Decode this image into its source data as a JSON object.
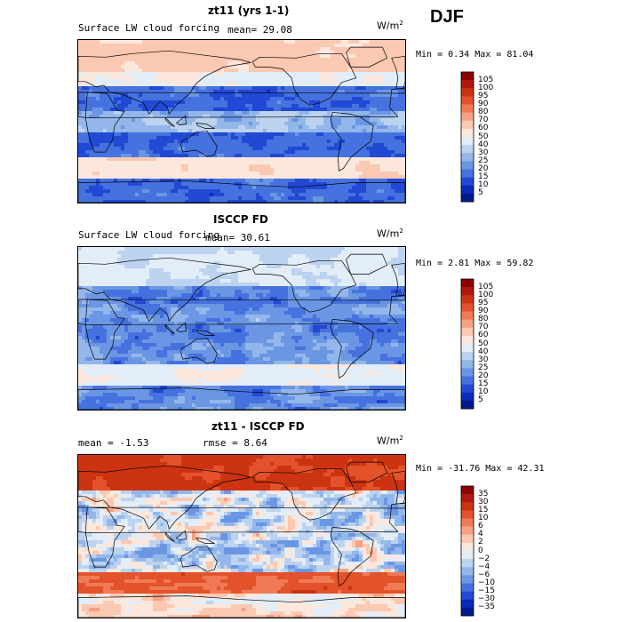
{
  "season": "DJF",
  "panels": [
    {
      "title": "zt11 (yrs 1-1)",
      "left_text": "Surface LW cloud forcing",
      "mean_text": "mean=  29.08",
      "units": "W/m",
      "units_exp": "2",
      "minmax": "Min =   0.34 Max =  81.04",
      "colorbar": {
        "labels": [
          "105",
          "100",
          "95",
          "90",
          "80",
          "70",
          "60",
          "50",
          "40",
          "30",
          "25",
          "20",
          "15",
          "10",
          "5"
        ],
        "colors": [
          "#8b0000",
          "#b2160e",
          "#cc3310",
          "#e3522a",
          "#ef7a55",
          "#f6a283",
          "#fbc8b2",
          "#fbe7dc",
          "#e3edf8",
          "#bcd3f0",
          "#93b7ea",
          "#6b96e4",
          "#4572de",
          "#2149d4",
          "#0a2ab8",
          "#001a8c"
        ]
      },
      "field": "model"
    },
    {
      "title": "ISCCP FD",
      "left_text": "Surface LW cloud forcing",
      "mean_text": "mean=  30.61",
      "units": "W/m",
      "units_exp": "2",
      "minmax": "Min =   2.81 Max =  59.82",
      "colorbar": {
        "labels": [
          "105",
          "100",
          "95",
          "90",
          "80",
          "70",
          "60",
          "50",
          "40",
          "30",
          "25",
          "20",
          "15",
          "10",
          "5"
        ],
        "colors": [
          "#8b0000",
          "#b2160e",
          "#cc3310",
          "#e3522a",
          "#ef7a55",
          "#f6a283",
          "#fbc8b2",
          "#fbe7dc",
          "#e3edf8",
          "#bcd3f0",
          "#93b7ea",
          "#6b96e4",
          "#4572de",
          "#2149d4",
          "#0a2ab8",
          "#001a8c"
        ]
      },
      "field": "obs"
    },
    {
      "title": "zt11 - ISCCP FD",
      "left_text": "mean =   -1.53",
      "mean_text": "rmse =   8.64",
      "units": "W/m",
      "units_exp": "2",
      "minmax": "Min = -31.76 Max =  42.31",
      "colorbar": {
        "labels": [
          "35",
          "30",
          "15",
          "10",
          "6",
          "4",
          "2",
          "0",
          "−2",
          "−4",
          "−6",
          "−10",
          "−15",
          "−30",
          "−35"
        ],
        "colors": [
          "#8b0000",
          "#b2160e",
          "#cc3310",
          "#e3522a",
          "#ef7a55",
          "#f6a283",
          "#fbc8b2",
          "#fbe7dc",
          "#e3edf8",
          "#bcd3f0",
          "#93b7ea",
          "#6b96e4",
          "#4572de",
          "#2149d4",
          "#0a2ab8",
          "#001a8c"
        ]
      },
      "field": "diff"
    }
  ]
}
